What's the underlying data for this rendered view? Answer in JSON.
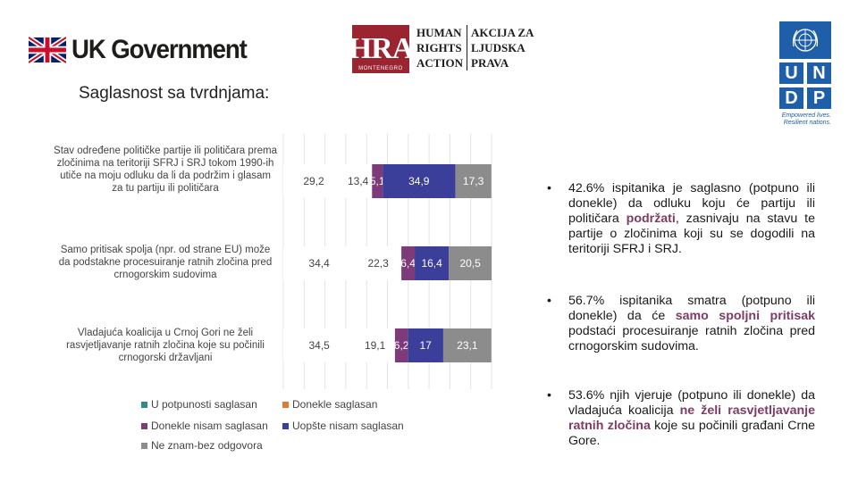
{
  "header": {
    "uk_logo_text": "UK Government",
    "hra": {
      "letters": "HRA",
      "sub": "MONTENEGRO",
      "col1": [
        "HUMAN",
        "RIGHTS",
        "ACTION"
      ],
      "col2": [
        "AKCIJA ZA",
        "LJUDSKA",
        "PRAVA"
      ]
    },
    "undp": {
      "letters": [
        "U",
        "N",
        "D",
        "P"
      ],
      "tagline1": "Empowered lives.",
      "tagline2": "Resilient nations."
    }
  },
  "slide_title": "Saglasnost sa tvrdnjama:",
  "chart_data": {
    "type": "bar",
    "orientation": "horizontal-stacked-100",
    "categories": [
      "Stav određene političke partije ili političara prema zločinima na teritoriji SFRJ i SRJ tokom 1990-ih utiče na moju odluku da li da podržim i glasam za tu partiju ili političara",
      "Samo pritisak spolja (npr. od strane EU) može da podstakne procesuiranje ratnih zločina pred crnogorskim sudovima",
      "Vladajuća koalicija u Crnoj Gori ne želi rasvjetljavanje ratnih zločina koje su počinili crnogorski državljani"
    ],
    "series": [
      {
        "name": "U potpunosti saglasan",
        "color": "#ffffff",
        "values": [
          29.2,
          34.4,
          34.5
        ],
        "labels": [
          "29,2",
          "34,4",
          "34,5"
        ]
      },
      {
        "name": "Donekle saglasan",
        "color": "#ffffff",
        "values": [
          13.4,
          22.3,
          19.1
        ],
        "labels": [
          "13,4",
          "22,3",
          "19,1"
        ]
      },
      {
        "name": "Donekle nisam saglasan",
        "color": "#7e3b7a",
        "values": [
          5.1,
          6.4,
          6.2
        ],
        "labels": [
          "5,1",
          "6,4",
          "6,2"
        ]
      },
      {
        "name": "Uopšte nisam saglasan",
        "color": "#3b3f9a",
        "values": [
          34.9,
          16.4,
          17
        ],
        "labels": [
          "34,9",
          "16,4",
          "17"
        ]
      },
      {
        "name": "Ne znam-bez odgovora",
        "color": "#8c8c8c",
        "values": [
          17.3,
          20.5,
          23.1
        ],
        "labels": [
          "17,3",
          "20,5",
          "23,1"
        ]
      }
    ],
    "legend": {
      "colors": [
        "#2e8b8b",
        "#e07b30",
        "#7e3b7a",
        "#3b3f9a",
        "#8c8c8c"
      ]
    },
    "grid": true,
    "xlim": [
      0,
      100
    ]
  },
  "bullets": [
    {
      "parts": [
        {
          "text": "42.6% ispitanika je saglasno (potpuno ili donekle) da odluku koju će partiju ili političara ",
          "hl": false
        },
        {
          "text": "podržati",
          "hl": true
        },
        {
          "text": ", zasnivaju na stavu te partije o zločinima koji su se dogodili na teritoriji SFRJ i SRJ.",
          "hl": false
        }
      ]
    },
    {
      "parts": [
        {
          "text": "56.7% ispitanika smatra (potpuno ili donekle) da će ",
          "hl": false
        },
        {
          "text": "samo spoljni pritisak",
          "hl": true
        },
        {
          "text": " podstaći procesuiranje ratnih zločina pred crnogorskim sudovima.",
          "hl": false
        }
      ]
    },
    {
      "parts": [
        {
          "text": "53.6% njih vjeruje (potpuno ili donekle) da vladajuća koalicija ",
          "hl": false
        },
        {
          "text": "ne želi rasvjetljavanje ratnih zločina",
          "hl": true
        },
        {
          "text": " koje su počinili građani Crne Gore.",
          "hl": false
        }
      ]
    }
  ]
}
